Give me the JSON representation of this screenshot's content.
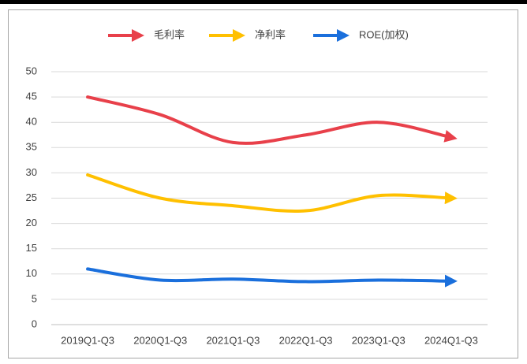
{
  "chart_data": {
    "type": "line",
    "categories": [
      "2019Q1-Q3",
      "2020Q1-Q3",
      "2021Q1-Q3",
      "2022Q1-Q3",
      "2023Q1-Q3",
      "2024Q1-Q3"
    ],
    "series": [
      {
        "name": "毛利率",
        "color": "#e8404a",
        "values": [
          45,
          41.5,
          36,
          37.5,
          40,
          37
        ]
      },
      {
        "name": "净利率",
        "color": "#ffc000",
        "values": [
          29.6,
          25,
          23.5,
          22.5,
          25.5,
          25
        ]
      },
      {
        "name": "ROE(加权)",
        "color": "#1a6fdc",
        "values": [
          11,
          8.8,
          9,
          8.5,
          8.8,
          8.6
        ]
      }
    ],
    "ylim": [
      0,
      50
    ],
    "yticks": [
      0,
      5,
      10,
      15,
      20,
      25,
      30,
      35,
      40,
      45,
      50
    ],
    "grid": true,
    "smooth": true,
    "legend": "top"
  }
}
